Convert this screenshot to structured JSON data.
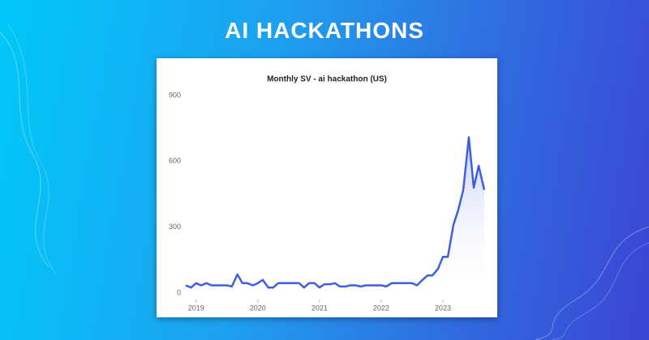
{
  "page_title": "AI HACKATHONS",
  "chart_data": {
    "type": "line",
    "title": "Monthly SV - ai hackathon (US)",
    "x": [
      2018.83,
      2018.92,
      2019.0,
      2019.08,
      2019.17,
      2019.25,
      2019.33,
      2019.42,
      2019.5,
      2019.58,
      2019.67,
      2019.75,
      2019.83,
      2019.92,
      2020.0,
      2020.08,
      2020.17,
      2020.25,
      2020.33,
      2020.42,
      2020.5,
      2020.58,
      2020.67,
      2020.75,
      2020.83,
      2020.92,
      2021.0,
      2021.08,
      2021.17,
      2021.25,
      2021.33,
      2021.42,
      2021.5,
      2021.58,
      2021.67,
      2021.75,
      2021.83,
      2021.92,
      2022.0,
      2022.08,
      2022.17,
      2022.25,
      2022.33,
      2022.42,
      2022.5,
      2022.58,
      2022.67,
      2022.75,
      2022.83,
      2022.92,
      2023.0,
      2023.08,
      2023.17,
      2023.25,
      2023.33,
      2023.42,
      2023.5,
      2023.58,
      2023.67
    ],
    "values": [
      35,
      25,
      45,
      35,
      45,
      35,
      35,
      35,
      35,
      30,
      85,
      45,
      45,
      35,
      45,
      60,
      25,
      25,
      45,
      45,
      45,
      45,
      45,
      25,
      45,
      45,
      25,
      40,
      40,
      45,
      30,
      30,
      35,
      35,
      30,
      35,
      35,
      35,
      35,
      30,
      45,
      45,
      45,
      45,
      45,
      35,
      60,
      80,
      80,
      110,
      165,
      165,
      310,
      380,
      470,
      710,
      480,
      580,
      470
    ],
    "color": "#3d5fe0",
    "xlim": [
      2018.78,
      2023.75
    ],
    "xticks": [
      2019,
      2020,
      2021,
      2022,
      2023
    ],
    "ylim": [
      0,
      900
    ],
    "yticks": [
      0,
      300,
      600,
      900
    ],
    "grid": false
  }
}
